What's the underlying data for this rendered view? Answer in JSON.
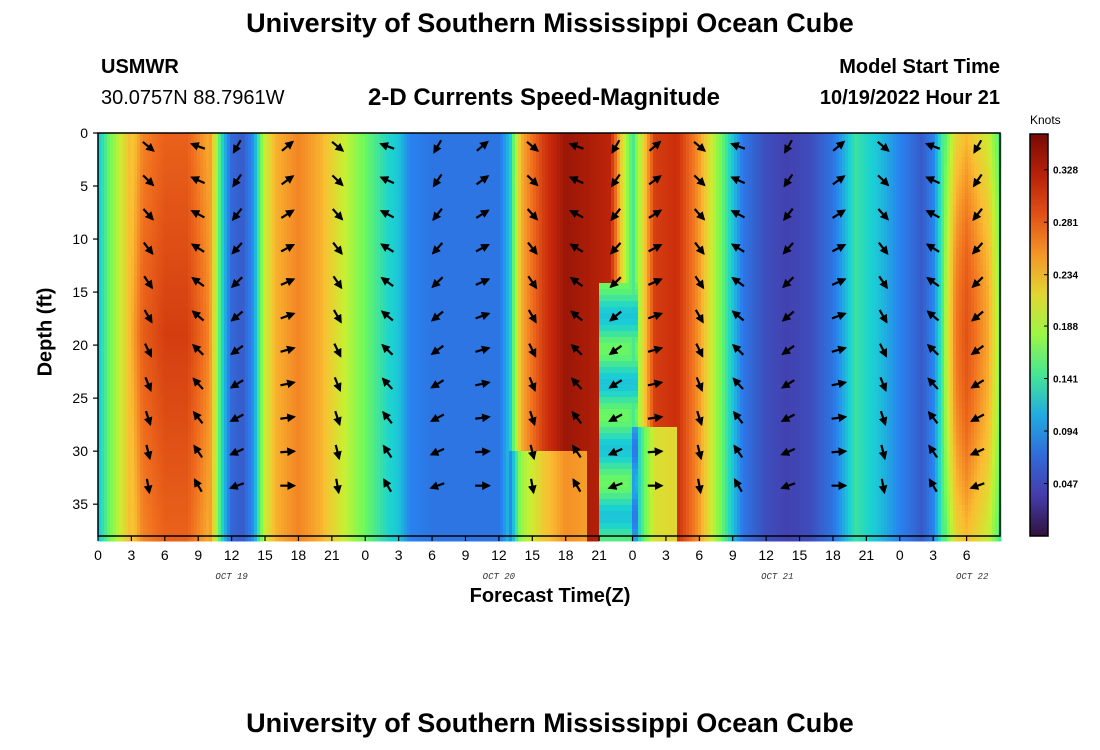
{
  "header": {
    "title": "University of Southern Mississippi Ocean Cube",
    "station": "USMWR",
    "coords": "30.0757N  88.7961W",
    "product": "2-D Currents Speed-Magnitude",
    "start_label": "Model Start Time",
    "start_value": "10/19/2022 Hour 21"
  },
  "footer": {
    "title": "University of Southern Mississippi Ocean Cube"
  },
  "chart_data": {
    "type": "heatmap",
    "title": "2-D Currents Speed-Magnitude",
    "xlabel": "Forecast Time(Z)",
    "ylabel": "Depth (ft)",
    "x_range_hours": [
      0,
      81
    ],
    "x_tick_labels": [
      "0",
      "3",
      "6",
      "9",
      "12",
      "15",
      "18",
      "21",
      "0",
      "3",
      "6",
      "9",
      "12",
      "15",
      "18",
      "21",
      "0",
      "3",
      "6",
      "9",
      "12",
      "15",
      "18",
      "21",
      "0",
      "3",
      "6"
    ],
    "date_labels": [
      {
        "label": "OCT 19",
        "hour": 12
      },
      {
        "label": "OCT 20",
        "hour": 36
      },
      {
        "label": "OCT 21",
        "hour": 61
      },
      {
        "label": "OCT 22",
        "hour": 78.5
      }
    ],
    "y_range_ft": [
      0,
      38
    ],
    "y_ticks": [
      0,
      5,
      10,
      15,
      20,
      25,
      30,
      35
    ],
    "colorbar": {
      "title": "Knots",
      "ticks": [
        "0.328",
        "0.281",
        "0.234",
        "0.188",
        "0.141",
        "0.094",
        "0.047"
      ],
      "range": [
        0.0,
        0.36
      ]
    },
    "speed_profile_knots": {
      "hours": [
        0,
        2,
        4,
        6,
        8,
        10,
        11,
        12,
        13,
        14,
        15,
        16,
        18,
        20,
        22,
        24,
        26,
        27,
        28,
        30,
        32,
        34,
        36,
        37,
        38,
        40,
        42,
        44,
        46,
        47,
        48,
        50,
        52,
        54,
        56,
        58,
        60,
        62,
        64,
        66,
        68,
        70,
        72,
        74,
        75,
        76,
        77,
        78,
        80,
        81
      ],
      "values": [
        0.12,
        0.2,
        0.28,
        0.3,
        0.3,
        0.26,
        0.14,
        0.07,
        0.06,
        0.1,
        0.2,
        0.24,
        0.26,
        0.24,
        0.2,
        0.16,
        0.13,
        0.12,
        0.09,
        0.08,
        0.08,
        0.08,
        0.08,
        0.12,
        0.24,
        0.3,
        0.34,
        0.33,
        0.32,
        0.22,
        0.14,
        0.3,
        0.31,
        0.25,
        0.16,
        0.08,
        0.05,
        0.04,
        0.05,
        0.08,
        0.14,
        0.12,
        0.09,
        0.06,
        0.09,
        0.16,
        0.24,
        0.26,
        0.22,
        0.16
      ]
    },
    "arrow_times_hours": [
      4.5,
      9,
      12.5,
      17,
      21.5,
      26,
      30.5,
      34.5,
      39,
      43,
      46.5,
      50,
      54,
      57.5,
      62,
      66.5,
      70.5,
      75,
      79
    ],
    "arrow_depths_ft": [
      0.5,
      3.7,
      6.9,
      10.1,
      13.3,
      16.5,
      19.7,
      22.9,
      26.1,
      29.3,
      32.5
    ]
  }
}
